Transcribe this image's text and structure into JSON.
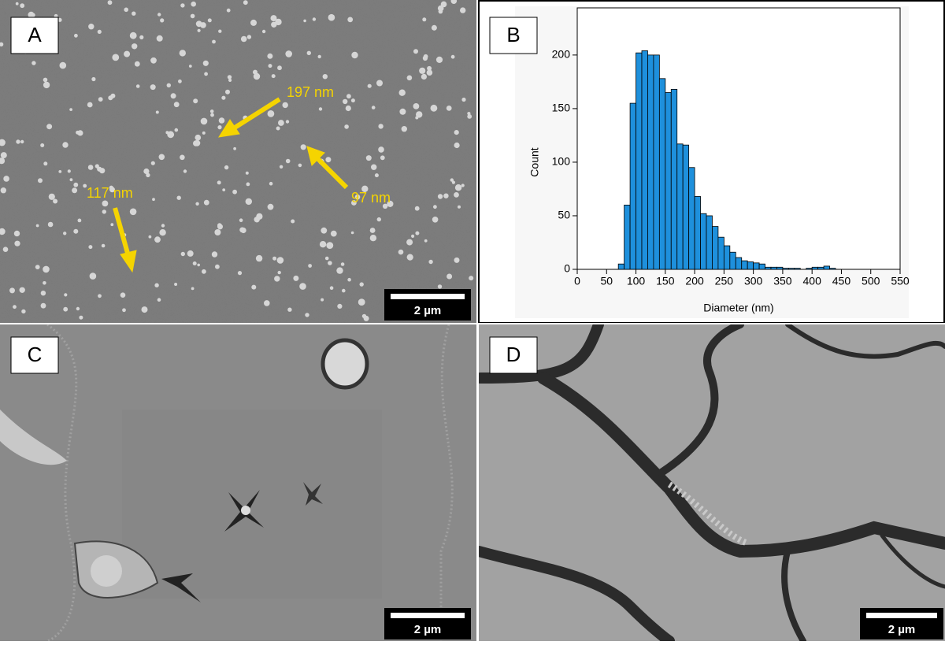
{
  "panels": [
    {
      "label": "A",
      "scale_bar": "2 µm",
      "annotations": [
        "197 nm",
        "97 nm",
        "117 nm"
      ]
    },
    {
      "label": "B"
    },
    {
      "label": "C",
      "scale_bar": "2 µm"
    },
    {
      "label": "D",
      "scale_bar": "2 µm"
    }
  ],
  "chart_data": {
    "type": "histogram",
    "x_label": "Diameter (nm)",
    "y_label": "Count",
    "bins": [
      70,
      80,
      90,
      100,
      110,
      120,
      130,
      140,
      150,
      160,
      170,
      180,
      190,
      200,
      210,
      220,
      230,
      240,
      250,
      260,
      270,
      280,
      290,
      300,
      310,
      320,
      330,
      340,
      350,
      360,
      370,
      380,
      390,
      400,
      410,
      420,
      430,
      440
    ],
    "counts": [
      5,
      60,
      155,
      202,
      204,
      200,
      200,
      178,
      165,
      168,
      117,
      116,
      95,
      68,
      52,
      50,
      40,
      30,
      22,
      16,
      11,
      8,
      7,
      6,
      5,
      2,
      2,
      2,
      1,
      1,
      1,
      0,
      1,
      2,
      2,
      3,
      1
    ],
    "color": "#1e90dc",
    "xlim": [
      0,
      550
    ],
    "xticks": [
      0,
      50,
      100,
      150,
      200,
      250,
      300,
      350,
      400,
      450,
      500,
      550
    ],
    "ylim": [
      0,
      244
    ],
    "yticks": [
      0,
      50,
      100,
      150,
      200
    ]
  }
}
